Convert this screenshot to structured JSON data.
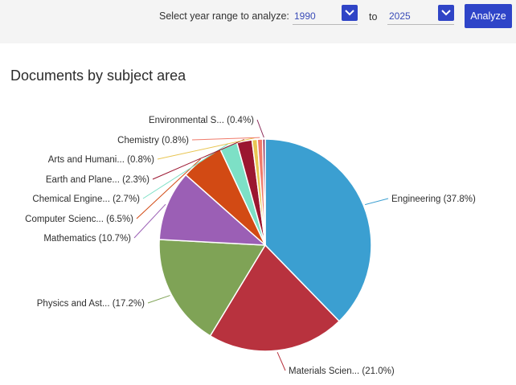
{
  "toolbar": {
    "range_label": "Select year range to analyze:",
    "from_year": "1990",
    "to_label": "to",
    "to_year": "2025",
    "analyze_label": "Analyze",
    "accent": "#2e44c8"
  },
  "chart_data": {
    "type": "pie",
    "title": "Documents by subject area",
    "slices": [
      {
        "label": "Engineering (37.8%)",
        "value": 37.8,
        "color": "#3b9fd1"
      },
      {
        "label": "Materials Scien... (21.0%)",
        "value": 21.0,
        "color": "#b8323e"
      },
      {
        "label": "Physics and Ast... (17.2%)",
        "value": 17.2,
        "color": "#7fa356"
      },
      {
        "label": "Mathematics (10.7%)",
        "value": 10.7,
        "color": "#9b5fb5"
      },
      {
        "label": "Computer Scienc... (6.5%)",
        "value": 6.5,
        "color": "#d24a14"
      },
      {
        "label": "Chemical Engine... (2.7%)",
        "value": 2.7,
        "color": "#7de0c6"
      },
      {
        "label": "Earth and Plane... (2.3%)",
        "value": 2.3,
        "color": "#9b1630"
      },
      {
        "label": "Arts and Humani... (0.8%)",
        "value": 0.8,
        "color": "#e8c552"
      },
      {
        "label": "Chemistry (0.8%)",
        "value": 0.8,
        "color": "#f07a6a"
      },
      {
        "label": "Environmental S... (0.4%)",
        "value": 0.4,
        "color": "#8a2a58"
      }
    ]
  }
}
